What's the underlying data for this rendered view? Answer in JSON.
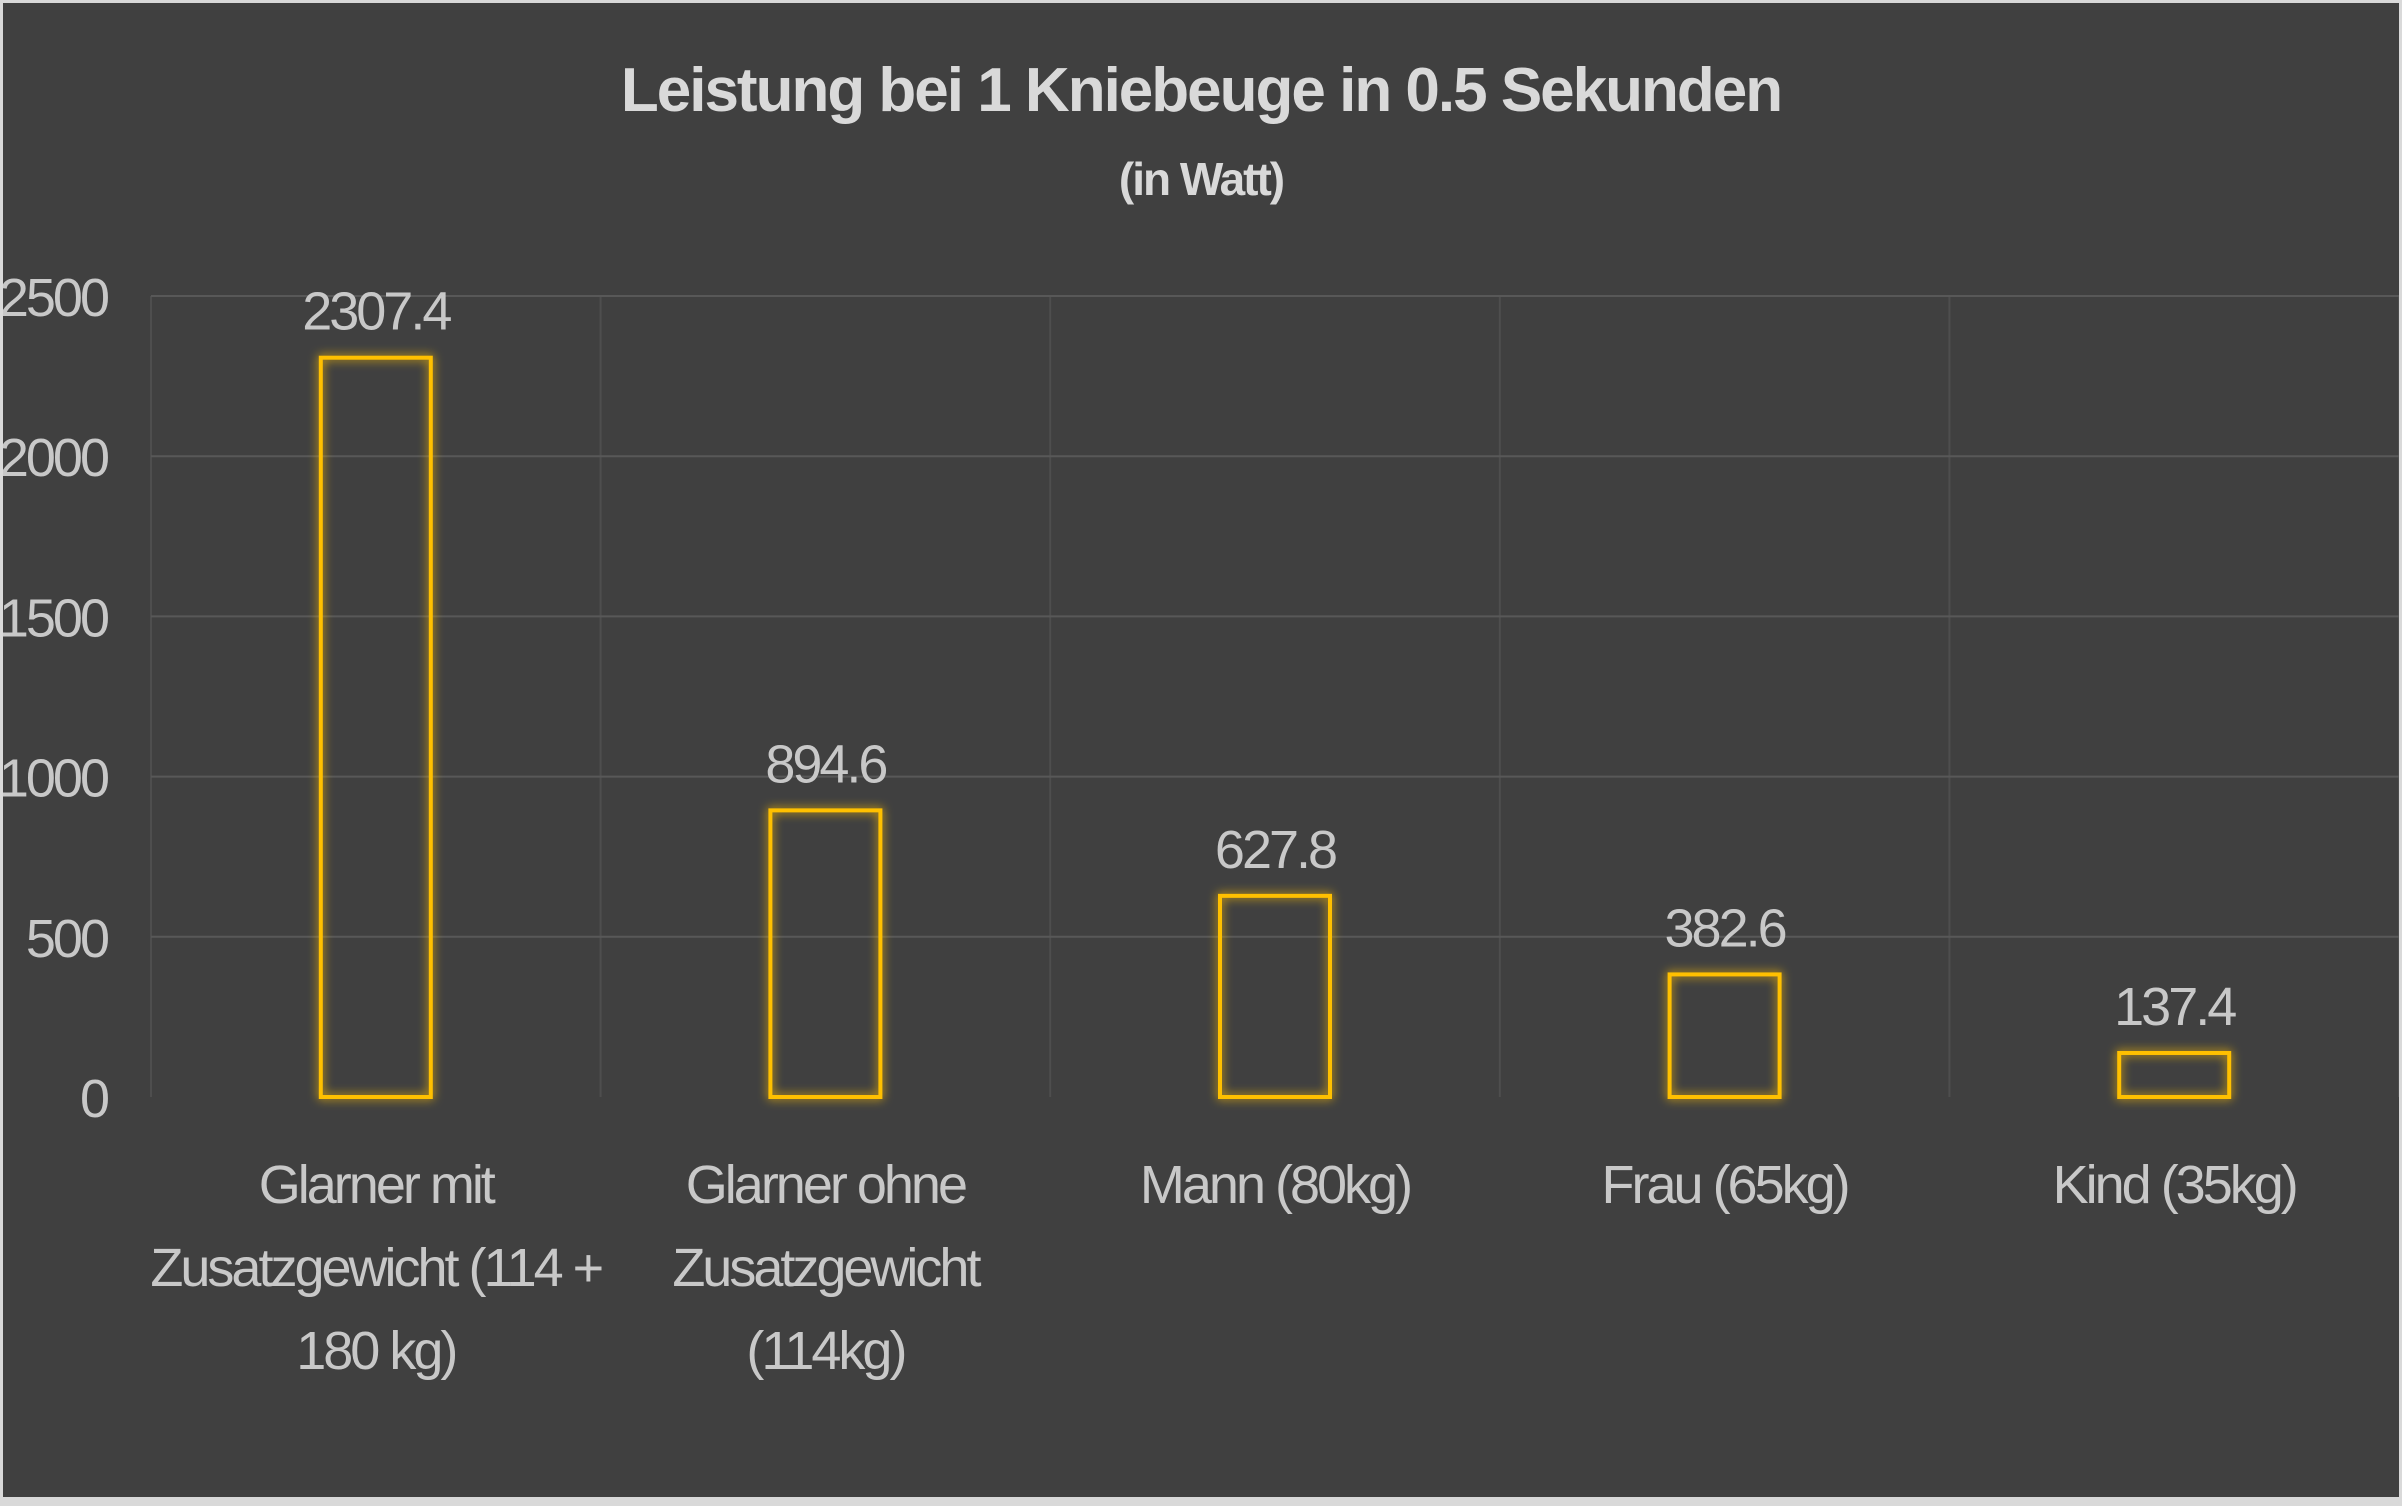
{
  "chart_data": {
    "type": "bar",
    "title": "Leistung bei 1 Kniebeuge in 0.5 Sekunden",
    "subtitle": "(in Watt)",
    "xlabel": "",
    "ylabel": "",
    "ylim": [
      0,
      2500
    ],
    "yticks": [
      0,
      500,
      1000,
      1500,
      2000,
      2500
    ],
    "grid": true,
    "categories": [
      [
        "Glarner mit",
        "Zusatzgewicht (114 +",
        "180 kg)"
      ],
      [
        "Glarner ohne",
        "Zusatzgewicht",
        "(114kg)"
      ],
      [
        "Mann (80kg)"
      ],
      [
        "Frau (65kg)"
      ],
      [
        "Kind (35kg)"
      ]
    ],
    "values": [
      2307.4,
      894.6,
      627.8,
      382.6,
      137.4
    ],
    "data_labels": [
      "2307.4",
      "894.6",
      "627.8",
      "382.6",
      "137.4"
    ],
    "bar_outline_color": "#FFC000",
    "background_color": "#404040"
  }
}
